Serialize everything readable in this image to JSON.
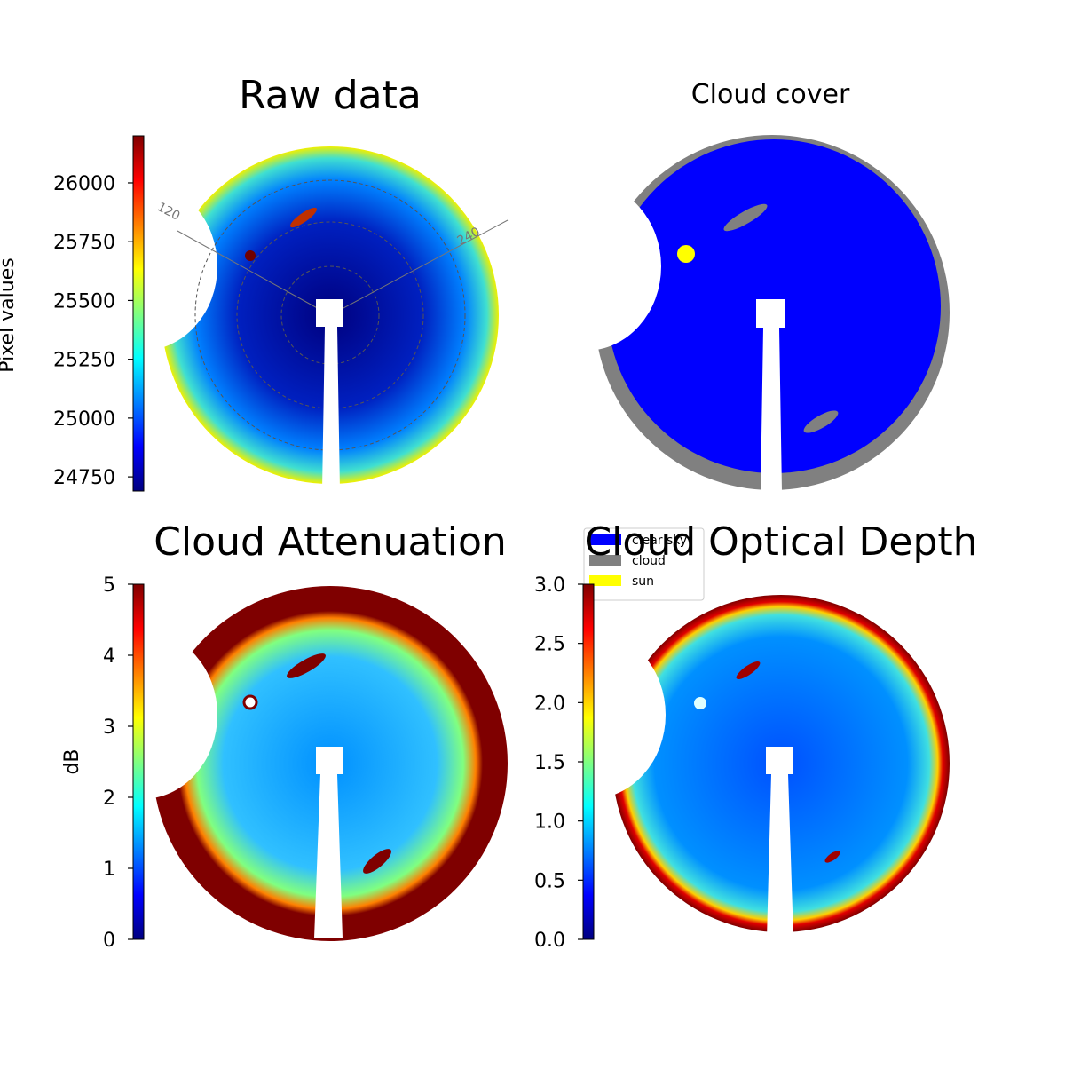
{
  "chart_data": [
    {
      "type": "image",
      "title": "Raw data",
      "ylabel": "Pixel values",
      "colormap": "jet",
      "ylim": [
        24690,
        26200
      ],
      "yticks": [
        24750,
        25000,
        25250,
        25500,
        25750,
        26000
      ],
      "annotations": [
        "120",
        "240"
      ]
    },
    {
      "type": "categorical-image",
      "title": "Cloud cover",
      "legend": "lower left",
      "series": [
        {
          "name": "clear sky",
          "color": "#0000ff"
        },
        {
          "name": "cloud",
          "color": "#808080"
        },
        {
          "name": "sun",
          "color": "#ffff00"
        }
      ]
    },
    {
      "type": "image",
      "title": "Cloud Attenuation",
      "ylabel": "dB",
      "colormap": "jet",
      "ylim": [
        0,
        5
      ],
      "yticks": [
        0,
        1,
        2,
        3,
        4,
        5
      ]
    },
    {
      "type": "image",
      "title": "Cloud Optical Depth",
      "colormap": "jet",
      "ylim": [
        0,
        3
      ],
      "yticks": [
        {
          "value": 0,
          "label": "0.0"
        },
        0.5,
        {
          "value": 1,
          "label": "1.0"
        },
        1.5,
        {
          "value": 2,
          "label": "2.0"
        },
        2.5,
        {
          "value": 3,
          "label": "3.0"
        }
      ]
    }
  ]
}
